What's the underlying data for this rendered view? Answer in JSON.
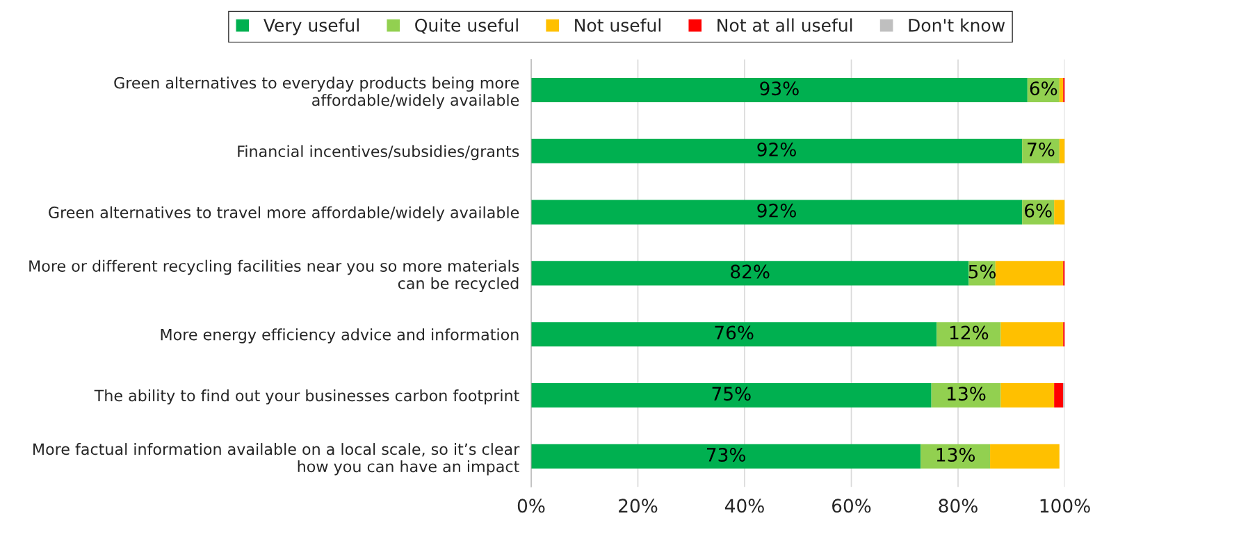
{
  "chart_data": {
    "type": "bar",
    "orientation": "horizontal",
    "stacked": true,
    "categories": [
      "Green alternatives to everyday products being more\naffordable/widely available",
      "Financial incentives/subsidies/grants",
      "Green alternatives to travel more affordable/widely available",
      "More or different recycling facilities near you so more materials\ncan be recycled",
      "More energy efficiency advice and information",
      "The ability to find out your businesses carbon footprint",
      "More factual information available on a local scale, so it’s clear\nhow you can have an impact"
    ],
    "series": [
      {
        "name": "Very useful",
        "color": "#00b050",
        "values": [
          93,
          92,
          92,
          82,
          76,
          75,
          73
        ],
        "value_labels": [
          "93%",
          "92%",
          "92%",
          "82%",
          "76%",
          "75%",
          "73%"
        ]
      },
      {
        "name": "Quite useful",
        "color": "#92d050",
        "values": [
          6,
          7,
          6,
          5,
          12,
          13,
          13
        ],
        "value_labels": [
          "6%",
          "7%",
          "6%",
          "5%",
          "12%",
          "13%",
          "13%"
        ]
      },
      {
        "name": "Not useful",
        "color": "#ffc000",
        "values": [
          0.7,
          1,
          2,
          12.7,
          11.7,
          10,
          13
        ]
      },
      {
        "name": "Not at all useful",
        "color": "#ff0000",
        "values": [
          0.3,
          0,
          0,
          0.3,
          0.3,
          1.7,
          0
        ]
      },
      {
        "name": "Don't know",
        "color": "#bfbfbf",
        "values": [
          0,
          0,
          0,
          0,
          0,
          0.3,
          0
        ]
      }
    ],
    "xlim": [
      0,
      100
    ],
    "xticks": [
      {
        "value": 0,
        "label": "0%"
      },
      {
        "value": 20,
        "label": "20%"
      },
      {
        "value": 40,
        "label": "40%"
      },
      {
        "value": 60,
        "label": "60%"
      },
      {
        "value": 80,
        "label": "80%"
      },
      {
        "value": 100,
        "label": "100%"
      }
    ],
    "grid": "x",
    "legend": "top"
  }
}
